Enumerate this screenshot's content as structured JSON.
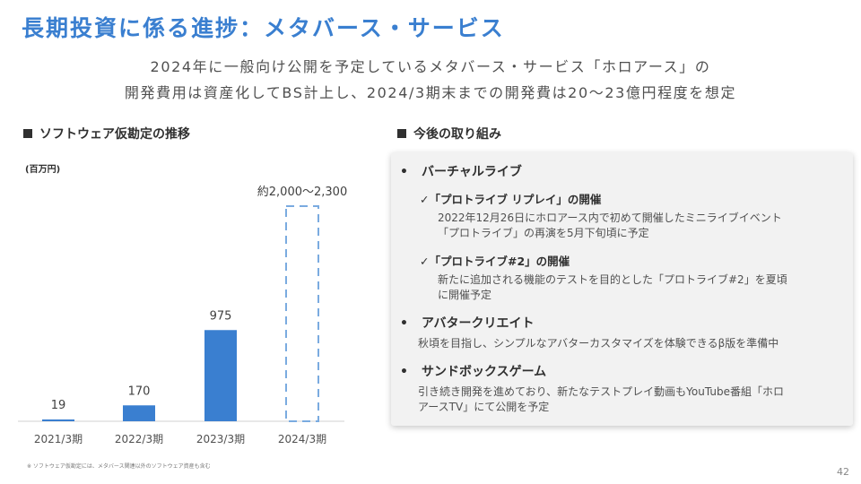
{
  "header": {
    "title": "長期投資に係る進捗：メタバース・サービス",
    "subtitle_line1": "2024年に一般向け公開を予定しているメタバース・サービス「ホロアース」の",
    "subtitle_line2": "開発費用は資産化してBS計上し、2024/3期末までの開発費は20〜23億円程度を想定"
  },
  "left": {
    "heading": "ソフトウェア仮勘定の推移",
    "unit": "(百万円)",
    "footnote": "※ ソフトウェア仮勘定には、メタバース関連以外のソフトウェア資産も含む"
  },
  "chart_data": {
    "type": "bar",
    "title": "ソフトウェア仮勘定の推移",
    "ylabel": "(百万円)",
    "categories": [
      "2021/3期",
      "2022/3期",
      "2023/3期",
      "2024/3期"
    ],
    "values": [
      19,
      170,
      975,
      null
    ],
    "data_labels": [
      "19",
      "170",
      "975",
      "約2,000〜2,300"
    ],
    "forecast": {
      "category": "2024/3期",
      "range": [
        2000,
        2300
      ],
      "label": "約2,000〜2,300",
      "style": "dashed-outline"
    },
    "ylim": [
      0,
      2300
    ],
    "grid": false,
    "bar_color": "#3a7fd0",
    "forecast_color": "#7aabe0"
  },
  "right": {
    "heading": "今後の取り組み",
    "bullets": [
      {
        "title": "バーチャルライブ",
        "subs": [
          {
            "title": "「プロトライブ リプレイ」の開催",
            "desc": [
              "2022年12月26日にホロアース内で初めて開催したミニライブイベント",
              "「プロトライブ」の再演を5月下旬頃に予定"
            ]
          },
          {
            "title": "「プロトライブ#2」の開催",
            "desc": [
              "新たに追加される機能のテストを目的とした「プロトライブ#2」を夏頃",
              "に開催予定"
            ]
          }
        ]
      },
      {
        "title": "アバタークリエイト",
        "desc": [
          "秋頃を目指し、シンプルなアバターカスタマイズを体験できるβ版を準備中"
        ]
      },
      {
        "title": "サンドボックスゲーム",
        "desc": [
          "引き続き開発を進めており、新たなテストプレイ動画もYouTube番組「ホロ",
          "アースTV」にて公開を予定"
        ]
      }
    ],
    "bullet_mark": "•",
    "check_mark": "✓"
  },
  "page_number": "42"
}
